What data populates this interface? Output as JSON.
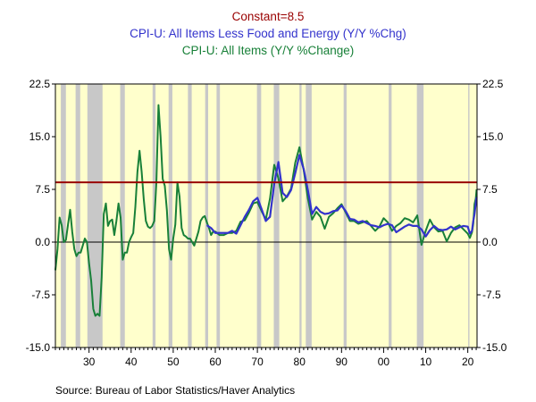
{
  "chart_data": {
    "type": "line",
    "title": "",
    "xlabel": "",
    "ylabel": "",
    "xlim": [
      1922,
      2022.2
    ],
    "ylim": [
      -15.0,
      22.5
    ],
    "y_ticks": [
      22.5,
      15.0,
      7.5,
      0.0,
      -7.5,
      -15.0
    ],
    "y_tick_labels": [
      "22.5",
      "15.0",
      "7.5",
      "0.0",
      "-7.5",
      "-15.0"
    ],
    "x_ticks": [
      1930,
      1940,
      1950,
      1960,
      1970,
      1980,
      1990,
      2000,
      2010,
      2020
    ],
    "x_tick_labels": [
      "30",
      "40",
      "50",
      "60",
      "70",
      "80",
      "90",
      "00",
      "10",
      "20"
    ],
    "grid": false,
    "legend_placement": "top",
    "background_color": "#FFFFCC",
    "recession_color": "#C8C8C8",
    "recessions": [
      [
        1923.3,
        1924.5
      ],
      [
        1926.8,
        1927.9
      ],
      [
        1929.6,
        1933.2
      ],
      [
        1937.4,
        1938.5
      ],
      [
        1945.1,
        1945.8
      ],
      [
        1948.9,
        1949.8
      ],
      [
        1953.5,
        1954.4
      ],
      [
        1957.6,
        1958.3
      ],
      [
        1960.3,
        1961.1
      ],
      [
        1969.9,
        1970.9
      ],
      [
        1973.9,
        1975.2
      ],
      [
        1980.0,
        1980.5
      ],
      [
        1981.5,
        1982.9
      ],
      [
        1990.5,
        1991.2
      ],
      [
        2001.2,
        2001.9
      ],
      [
        2007.9,
        2009.5
      ],
      [
        2020.1,
        2020.4
      ]
    ],
    "series": [
      {
        "name": "Constant=8.5",
        "color": "#990000",
        "x": [
          1922,
          2022.2
        ],
        "values": [
          8.5,
          8.5
        ]
      },
      {
        "name": "CPI-U: All Items Less Food and Energy (Y/Y %Chg)",
        "color": "#3333CC",
        "x": [
          1958.0,
          1959.0,
          1960.0,
          1961.0,
          1962.0,
          1963.0,
          1964.0,
          1965.0,
          1966.0,
          1967.0,
          1968.0,
          1969.0,
          1970.0,
          1971.0,
          1972.0,
          1973.0,
          1974.0,
          1975.0,
          1976.0,
          1977.0,
          1978.0,
          1979.0,
          1980.0,
          1981.0,
          1982.0,
          1983.0,
          1984.0,
          1985.0,
          1986.0,
          1987.0,
          1988.0,
          1989.0,
          1990.0,
          1991.0,
          1992.0,
          1993.0,
          1994.0,
          1995.0,
          1996.0,
          1997.0,
          1998.0,
          1999.0,
          2000.0,
          2001.0,
          2002.0,
          2003.0,
          2004.0,
          2005.0,
          2006.0,
          2007.0,
          2008.0,
          2009.0,
          2010.0,
          2011.0,
          2012.0,
          2013.0,
          2014.0,
          2015.0,
          2016.0,
          2017.0,
          2018.0,
          2019.0,
          2020.0,
          2020.5,
          2021.0,
          2021.3,
          2021.6,
          2021.9,
          2022.1
        ],
        "values": [
          2.4,
          2.0,
          1.3,
          1.3,
          1.3,
          1.3,
          1.6,
          1.2,
          2.4,
          3.6,
          4.6,
          5.8,
          6.3,
          4.7,
          3.0,
          3.6,
          8.3,
          11.4,
          7.0,
          6.4,
          7.4,
          9.8,
          12.4,
          10.4,
          7.4,
          4.0,
          5.0,
          4.3,
          4.0,
          4.1,
          4.4,
          4.5,
          5.2,
          4.4,
          3.3,
          3.2,
          2.8,
          3.0,
          2.7,
          2.4,
          2.3,
          2.1,
          2.4,
          2.6,
          2.4,
          1.4,
          1.8,
          2.2,
          2.5,
          2.3,
          2.3,
          1.8,
          0.8,
          1.7,
          2.3,
          1.8,
          1.7,
          1.8,
          2.2,
          1.8,
          2.1,
          2.3,
          2.2,
          1.2,
          1.6,
          3.0,
          4.0,
          5.5,
          6.4
        ]
      },
      {
        "name": "CPI-U: All Items (Y/Y %Change)",
        "color": "#188038",
        "x": [
          1922.0,
          1922.5,
          1923.0,
          1923.5,
          1924.0,
          1924.5,
          1925.0,
          1925.5,
          1926.0,
          1926.5,
          1927.0,
          1927.5,
          1928.0,
          1928.5,
          1929.0,
          1929.5,
          1930.0,
          1930.5,
          1931.0,
          1931.5,
          1932.0,
          1932.5,
          1933.0,
          1933.5,
          1934.0,
          1934.5,
          1935.0,
          1935.5,
          1936.0,
          1936.5,
          1937.0,
          1937.5,
          1938.0,
          1938.5,
          1939.0,
          1939.5,
          1940.0,
          1940.5,
          1941.0,
          1941.5,
          1942.0,
          1942.5,
          1943.0,
          1943.5,
          1944.0,
          1944.5,
          1945.0,
          1945.5,
          1946.0,
          1946.5,
          1947.0,
          1947.5,
          1948.0,
          1948.5,
          1949.0,
          1949.5,
          1950.0,
          1950.5,
          1951.0,
          1951.5,
          1952.0,
          1952.5,
          1953.0,
          1953.5,
          1954.0,
          1954.5,
          1955.0,
          1955.5,
          1956.0,
          1956.5,
          1957.0,
          1957.5,
          1958.0,
          1958.5,
          1959.0,
          1959.5,
          1960.0,
          1961.0,
          1962.0,
          1963.0,
          1964.0,
          1965.0,
          1966.0,
          1967.0,
          1968.0,
          1969.0,
          1970.0,
          1971.0,
          1972.0,
          1973.0,
          1974.0,
          1975.0,
          1976.0,
          1977.0,
          1978.0,
          1979.0,
          1980.0,
          1981.0,
          1982.0,
          1983.0,
          1984.0,
          1985.0,
          1986.0,
          1987.0,
          1988.0,
          1989.0,
          1990.0,
          1991.0,
          1992.0,
          1993.0,
          1994.0,
          1995.0,
          1996.0,
          1997.0,
          1998.0,
          1999.0,
          2000.0,
          2001.0,
          2002.0,
          2003.0,
          2004.0,
          2005.0,
          2006.0,
          2007.0,
          2008.0,
          2009.0,
          2010.0,
          2011.0,
          2012.0,
          2013.0,
          2014.0,
          2015.0,
          2016.0,
          2017.0,
          2018.0,
          2019.0,
          2020.0,
          2020.5,
          2021.0,
          2021.3,
          2021.6,
          2021.9,
          2022.1
        ],
        "values": [
          -4.0,
          -1.0,
          3.5,
          2.4,
          0.0,
          0.3,
          2.5,
          4.6,
          1.5,
          -1.0,
          -2.0,
          -1.5,
          -1.5,
          -0.5,
          0.5,
          0.0,
          -3.0,
          -5.5,
          -9.5,
          -10.5,
          -10.2,
          -10.5,
          -5.0,
          4.0,
          5.5,
          2.3,
          3.0,
          3.2,
          1.0,
          3.0,
          5.5,
          3.5,
          -2.5,
          -1.5,
          -1.5,
          0.0,
          0.7,
          1.3,
          5.0,
          10.0,
          13.0,
          10.0,
          6.1,
          3.0,
          2.2,
          2.0,
          2.3,
          3.0,
          8.5,
          19.5,
          15.0,
          9.0,
          8.0,
          4.5,
          -1.0,
          -2.5,
          0.5,
          2.5,
          8.5,
          6.5,
          2.0,
          1.0,
          0.8,
          0.5,
          0.5,
          0.0,
          -0.5,
          0.5,
          1.5,
          3.0,
          3.5,
          3.7,
          2.8,
          2.0,
          1.0,
          1.5,
          1.5,
          1.0,
          1.0,
          1.3,
          1.3,
          1.6,
          2.9,
          3.1,
          4.2,
          5.5,
          5.7,
          4.4,
          3.2,
          6.2,
          11.0,
          9.1,
          5.8,
          6.5,
          7.6,
          11.3,
          13.5,
          10.3,
          6.2,
          3.2,
          4.3,
          3.6,
          1.9,
          3.6,
          4.1,
          4.8,
          5.4,
          4.2,
          3.0,
          3.0,
          2.6,
          2.8,
          3.0,
          2.3,
          1.6,
          2.2,
          3.4,
          2.8,
          1.6,
          2.3,
          2.7,
          3.4,
          3.2,
          2.8,
          3.8,
          -0.4,
          1.6,
          3.2,
          2.1,
          1.5,
          1.6,
          0.1,
          1.3,
          2.1,
          2.4,
          1.8,
          1.2,
          0.6,
          1.4,
          2.6,
          5.4,
          6.2,
          7.5
        ]
      }
    ],
    "source": "Source:  Bureau of Labor Statistics/Haver Analytics"
  }
}
